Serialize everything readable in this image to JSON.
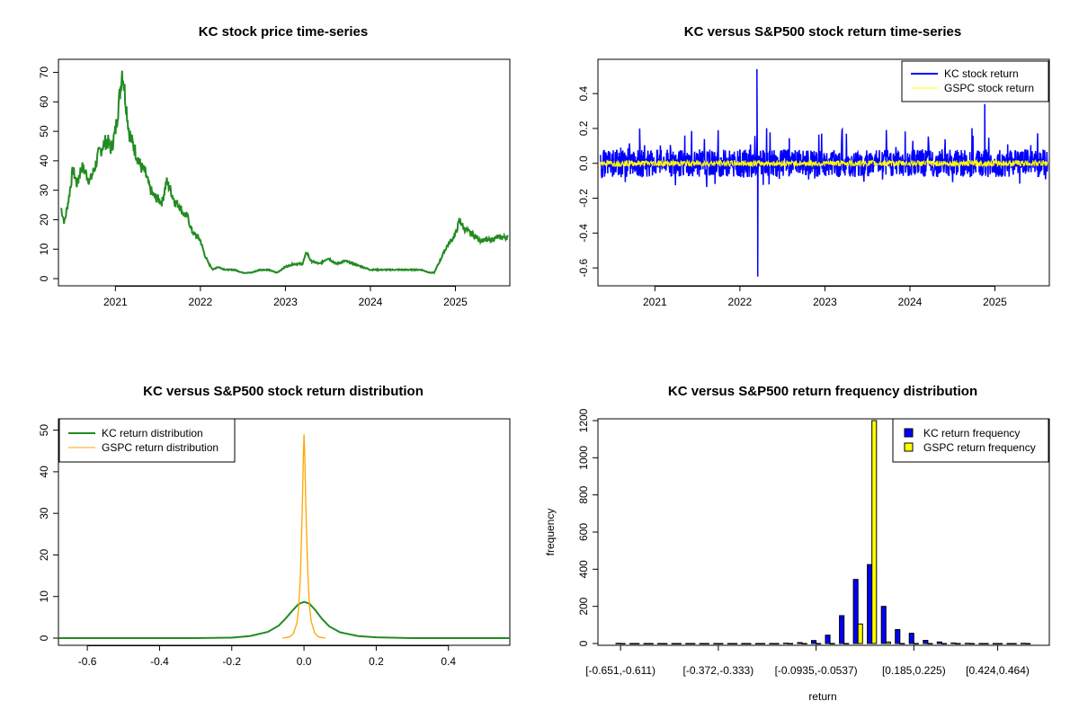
{
  "colors": {
    "kc_price": "#228B22",
    "kc_return": "#0000FF",
    "gspc_return": "#FFFF00",
    "kc_density": "#228B22",
    "gspc_density": "#FFA500",
    "kc_freq": "#0000FF",
    "gspc_freq": "#FFFF00"
  },
  "chart_data": [
    {
      "type": "line",
      "title": "KC stock price time-series",
      "xlim": [
        2020.33,
        2025.64
      ],
      "ylim": [
        0,
        72
      ],
      "x_ticks": [
        2021,
        2022,
        2023,
        2024,
        2025
      ],
      "x_tick_labels": [
        "2021",
        "2022",
        "2023",
        "2024",
        "2025"
      ],
      "y_ticks": [
        0,
        10,
        20,
        30,
        40,
        50,
        60,
        70
      ],
      "y_tick_labels": [
        "0",
        "10",
        "20",
        "30",
        "40",
        "50",
        "60",
        "70"
      ],
      "series": [
        {
          "x": [
            2020.36,
            2020.4,
            2020.45,
            2020.5,
            2020.55,
            2020.6,
            2020.65,
            2020.7,
            2020.75,
            2020.8,
            2020.85,
            2020.9,
            2020.95,
            2021.0,
            2021.05,
            2021.08,
            2021.1,
            2021.13,
            2021.16,
            2021.2,
            2021.25,
            2021.3,
            2021.35,
            2021.4,
            2021.45,
            2021.5,
            2021.55,
            2021.6,
            2021.65,
            2021.7,
            2021.75,
            2021.8,
            2021.85,
            2021.9,
            2022.0,
            2022.05,
            2022.1,
            2022.15,
            2022.2,
            2022.3,
            2022.4,
            2022.5,
            2022.6,
            2022.7,
            2022.8,
            2022.9,
            2023.0,
            2023.1,
            2023.2,
            2023.25,
            2023.3,
            2023.4,
            2023.5,
            2023.6,
            2023.7,
            2023.8,
            2023.9,
            2024.0,
            2024.2,
            2024.4,
            2024.6,
            2024.7,
            2024.75,
            2024.8,
            2024.85,
            2024.9,
            2024.95,
            2025.0,
            2025.05,
            2025.1,
            2025.15,
            2025.2,
            2025.3,
            2025.4,
            2025.5,
            2025.55,
            2025.62
          ],
          "values": [
            24,
            19,
            27,
            37,
            32,
            38,
            36,
            33,
            37,
            42,
            45,
            47,
            44,
            50,
            62,
            71,
            66,
            58,
            50,
            46,
            42,
            38,
            36,
            31,
            28,
            27,
            26,
            33,
            30,
            26,
            25,
            22,
            21,
            16,
            13,
            8,
            5,
            3,
            4,
            3,
            3,
            2,
            2,
            3,
            3,
            2,
            4,
            5,
            5,
            9,
            6,
            5,
            7,
            5,
            6,
            5,
            4,
            3,
            3,
            3,
            3,
            2,
            2,
            5,
            8,
            11,
            13,
            15,
            20,
            17,
            16,
            15,
            13,
            13,
            14,
            14,
            14
          ]
        }
      ]
    },
    {
      "type": "line",
      "title": "KC versus S&P500 stock return time-series",
      "xlim": [
        2020.33,
        2025.64
      ],
      "ylim": [
        -0.651,
        0.545
      ],
      "x_ticks": [
        2021,
        2022,
        2023,
        2024,
        2025
      ],
      "x_tick_labels": [
        "2021",
        "2022",
        "2023",
        "2024",
        "2025"
      ],
      "y_ticks": [
        -0.6,
        -0.4,
        -0.2,
        0,
        0.2,
        0.4
      ],
      "y_tick_labels": [
        "-0.6",
        "-0.4",
        "-0.2",
        "0.0",
        "0.2",
        "0.4"
      ],
      "series": [
        {
          "name": "KC stock return",
          "spikes": [
            [
              2022.2,
              0.54
            ],
            [
              2022.21,
              -0.65
            ],
            [
              2024.88,
              0.34
            ]
          ]
        },
        {
          "name": "GSPC stock return"
        }
      ],
      "legend": "top-right"
    },
    {
      "type": "line",
      "title": "KC versus S&P500 stock return distribution",
      "xlim": [
        -0.68,
        0.57
      ],
      "ylim": [
        0,
        51
      ],
      "x_ticks": [
        -0.6,
        -0.4,
        -0.2,
        0,
        0.2,
        0.4
      ],
      "x_tick_labels": [
        "-0.6",
        "-0.4",
        "-0.2",
        "0.0",
        "0.2",
        "0.4"
      ],
      "y_ticks": [
        0,
        10,
        20,
        30,
        40,
        50
      ],
      "y_tick_labels": [
        "0",
        "10",
        "20",
        "30",
        "40",
        "50"
      ],
      "series": [
        {
          "name": "KC return distribution",
          "x": [
            -0.68,
            -0.3,
            -0.2,
            -0.15,
            -0.1,
            -0.07,
            -0.05,
            -0.03,
            -0.015,
            0,
            0.015,
            0.03,
            0.05,
            0.07,
            0.1,
            0.15,
            0.2,
            0.3,
            0.57
          ],
          "values": [
            0,
            0,
            0.1,
            0.5,
            1.5,
            3,
            4.8,
            6.8,
            8.2,
            8.7,
            8.3,
            6.9,
            4.6,
            2.8,
            1.4,
            0.5,
            0.2,
            0,
            0
          ]
        },
        {
          "name": "GSPC return distribution",
          "x": [
            -0.06,
            -0.04,
            -0.03,
            -0.02,
            -0.015,
            -0.01,
            -0.005,
            -0.002,
            0,
            0.002,
            0.005,
            0.01,
            0.015,
            0.02,
            0.03,
            0.04,
            0.06
          ],
          "values": [
            0,
            0.3,
            1,
            3.5,
            7,
            15,
            30,
            43,
            49,
            44,
            32,
            17,
            8,
            4,
            1.2,
            0.3,
            0
          ]
        }
      ],
      "legend": "top-left"
    },
    {
      "type": "bar",
      "title": "KC versus S&P500 return frequency distribution",
      "xlabel": "return",
      "ylabel": "frequency",
      "ylim": [
        0,
        1200
      ],
      "y_ticks": [
        0,
        200,
        400,
        600,
        800,
        1000,
        1200
      ],
      "y_tick_labels": [
        "0",
        "200",
        "400",
        "600",
        "800",
        "1000",
        "1200"
      ],
      "x_tick_labels": [
        "[-0.651,-0.611)",
        "[-0.372,-0.333)",
        "[-0.0935,-0.0537)",
        "[0.185,0.225)",
        "[0.424,0.464)"
      ],
      "x_tick_index": [
        0,
        7,
        14,
        21,
        27
      ],
      "series": [
        {
          "name": "KC return frequency",
          "values": [
            1,
            0,
            0,
            0,
            0,
            0,
            0,
            0,
            0,
            0,
            0,
            0,
            2,
            5,
            16,
            45,
            150,
            345,
            425,
            200,
            75,
            55,
            17,
            8,
            3,
            1,
            0,
            0,
            0,
            1
          ]
        },
        {
          "name": "GSPC return frequency",
          "values": [
            0,
            0,
            0,
            0,
            0,
            0,
            0,
            0,
            0,
            0,
            0,
            0,
            0,
            0,
            0,
            0,
            0,
            105,
            1240,
            8,
            0,
            0,
            0,
            0,
            0,
            0,
            0,
            0,
            0,
            0
          ]
        }
      ],
      "legend": "top-right"
    }
  ]
}
